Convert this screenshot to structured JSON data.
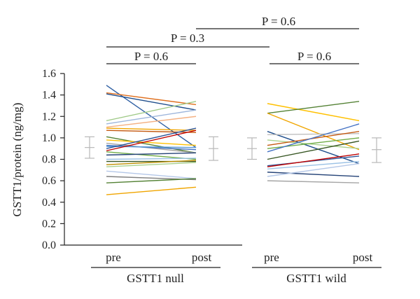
{
  "chart_data": {
    "type": "line",
    "title": "",
    "ylabel": "GSTT1/protein (ng/mg)",
    "ylim": [
      0,
      1.6
    ],
    "yticks": [
      "0.0",
      "0.2",
      "0.4",
      "0.6",
      "0.8",
      "1.0",
      "1.2",
      "1.4",
      "1.6"
    ],
    "groups": [
      {
        "name": "GSTT1 null",
        "x": [
          "pre",
          "post"
        ],
        "summary": {
          "pre": {
            "mean": 0.91,
            "upper": 1.01,
            "lower": 0.81
          },
          "post": {
            "mean": 0.9,
            "upper": 1.01,
            "lower": 0.79
          }
        },
        "series": [
          {
            "values": [
              1.49,
              0.91
            ],
            "color": "#2e5fa3"
          },
          {
            "values": [
              1.42,
              1.31
            ],
            "color": "#e0701f"
          },
          {
            "values": [
              1.41,
              1.26
            ],
            "color": "#1f4e8c"
          },
          {
            "values": [
              1.16,
              1.34
            ],
            "color": "#9ec986"
          },
          {
            "values": [
              1.13,
              1.26
            ],
            "color": "#9eb6dc"
          },
          {
            "values": [
              1.1,
              1.2
            ],
            "color": "#f4b183"
          },
          {
            "values": [
              1.09,
              1.07
            ],
            "color": "#f0a500"
          },
          {
            "values": [
              1.07,
              1.05
            ],
            "color": "#c55a11"
          },
          {
            "values": [
              1.01,
              0.86
            ],
            "color": "#548235"
          },
          {
            "values": [
              0.98,
              0.93
            ],
            "color": "#ffc000"
          },
          {
            "values": [
              0.95,
              0.86
            ],
            "color": "#a5a5a5"
          },
          {
            "values": [
              0.93,
              0.89
            ],
            "color": "#4472c4"
          },
          {
            "values": [
              0.92,
              0.91
            ],
            "color": "#5b9bd5"
          },
          {
            "values": [
              0.9,
              1.09
            ],
            "color": "#2f5597"
          },
          {
            "values": [
              0.88,
              1.07
            ],
            "color": "#c00000"
          },
          {
            "values": [
              0.87,
              0.8
            ],
            "color": "#70ad47"
          },
          {
            "values": [
              0.84,
              0.86
            ],
            "color": "#264478"
          },
          {
            "values": [
              0.8,
              0.81
            ],
            "color": "#9dc3e6"
          },
          {
            "values": [
              0.78,
              0.78
            ],
            "color": "#375623"
          },
          {
            "values": [
              0.75,
              0.79
            ],
            "color": "#bf9000"
          },
          {
            "values": [
              0.73,
              0.77
            ],
            "color": "#a9d18e"
          },
          {
            "values": [
              0.69,
              0.62
            ],
            "color": "#b4c7e7"
          },
          {
            "values": [
              0.64,
              0.61
            ],
            "color": "#7f7f7f"
          },
          {
            "values": [
              0.58,
              0.62
            ],
            "color": "#548235"
          },
          {
            "values": [
              0.47,
              0.54
            ],
            "color": "#f0a500"
          }
        ]
      },
      {
        "name": "GSTT1 wild",
        "x": [
          "pre",
          "post"
        ],
        "summary": {
          "pre": {
            "mean": 0.9,
            "upper": 1.0,
            "lower": 0.8
          },
          "post": {
            "mean": 0.89,
            "upper": 1.0,
            "lower": 0.77
          }
        },
        "series": [
          {
            "values": [
              1.32,
              1.16
            ],
            "color": "#ffc000"
          },
          {
            "values": [
              1.23,
              1.34
            ],
            "color": "#548235"
          },
          {
            "values": [
              1.23,
              0.89
            ],
            "color": "#f0a500"
          },
          {
            "values": [
              1.06,
              0.76
            ],
            "color": "#1f4e8c"
          },
          {
            "values": [
              1.03,
              1.04
            ],
            "color": "#bfbfbf"
          },
          {
            "values": [
              0.98,
              0.9
            ],
            "color": "#a9d18e"
          },
          {
            "values": [
              0.93,
              1.06
            ],
            "color": "#c55a11"
          },
          {
            "values": [
              0.9,
              1.0
            ],
            "color": "#70ad47"
          },
          {
            "values": [
              0.87,
              1.13
            ],
            "color": "#4472c4"
          },
          {
            "values": [
              0.8,
              0.97
            ],
            "color": "#375623"
          },
          {
            "values": [
              0.74,
              0.83
            ],
            "color": "#2f5597"
          },
          {
            "values": [
              0.73,
              0.85
            ],
            "color": "#c00000"
          },
          {
            "values": [
              0.71,
              0.78
            ],
            "color": "#9dc3e6"
          },
          {
            "values": [
              0.68,
              0.64
            ],
            "color": "#264478"
          },
          {
            "values": [
              0.64,
              0.76
            ],
            "color": "#b4c7e7"
          },
          {
            "values": [
              0.6,
              0.58
            ],
            "color": "#a5a5a5"
          }
        ]
      }
    ],
    "comparisons": [
      {
        "label": "P = 0.6",
        "between": "null pre vs null post"
      },
      {
        "label": "P = 0.3",
        "between": "null pre vs wild pre"
      },
      {
        "label": "P = 0.6",
        "between": "wild pre vs wild post"
      },
      {
        "label": "P = 0.6",
        "between": "null post vs wild post"
      }
    ]
  }
}
